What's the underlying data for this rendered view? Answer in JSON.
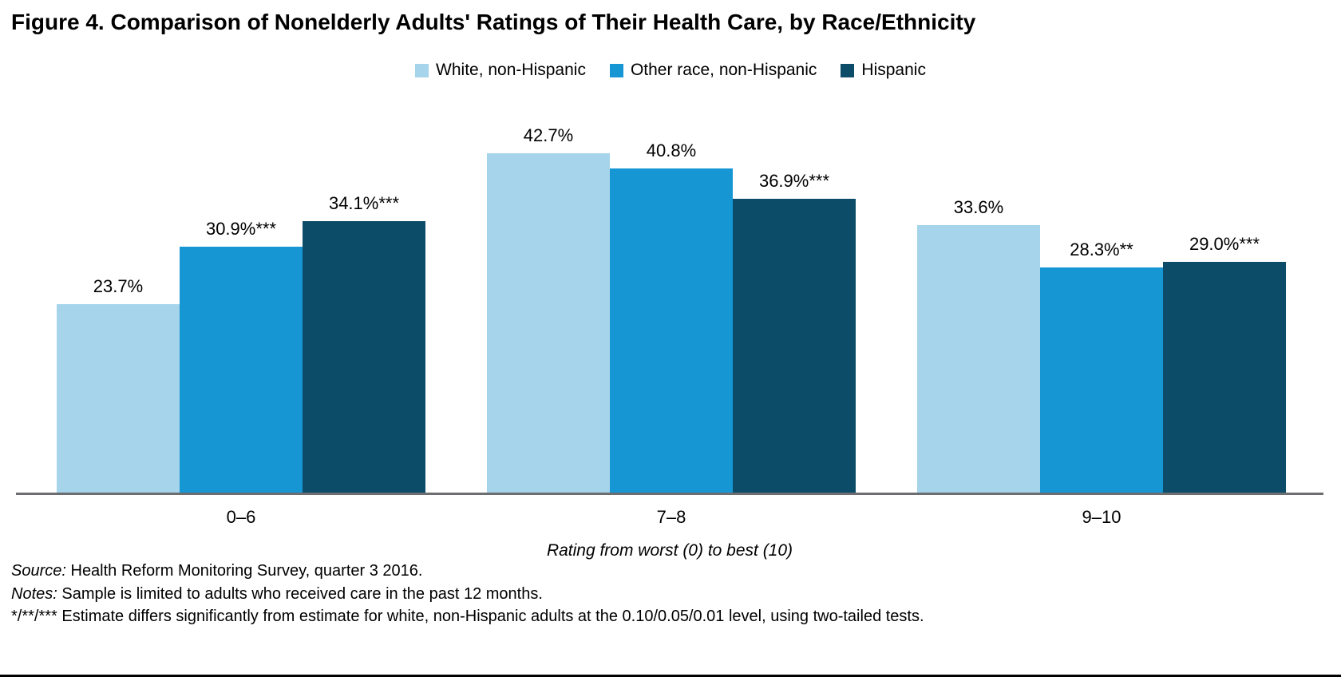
{
  "title": "Figure 4. Comparison of Nonelderly Adults' Ratings of Their Health Care, by Race/Ethnicity",
  "legend": [
    {
      "label": "White, non-Hispanic",
      "color": "#a6d4ea"
    },
    {
      "label": "Other race, non-Hispanic",
      "color": "#1796d4"
    },
    {
      "label": "Hispanic",
      "color": "#0c4c69"
    }
  ],
  "chart_data": {
    "type": "bar",
    "categories": [
      "0–6",
      "7–8",
      "9–10"
    ],
    "series": [
      {
        "name": "White, non-Hispanic",
        "color": "#a6d4ea",
        "values": [
          23.7,
          42.7,
          33.6
        ],
        "labels": [
          "23.7%",
          "42.7%",
          "33.6%"
        ]
      },
      {
        "name": "Other race, non-Hispanic",
        "color": "#1796d4",
        "values": [
          30.9,
          40.8,
          28.3
        ],
        "labels": [
          "30.9%***",
          "40.8%",
          "28.3%**"
        ]
      },
      {
        "name": "Hispanic",
        "color": "#0c4c69",
        "values": [
          34.1,
          36.9,
          29.0
        ],
        "labels": [
          "34.1%***",
          "36.9%***",
          "29.0%***"
        ]
      }
    ],
    "xlabel": "Rating from worst (0) to best (10)",
    "ylabel": "",
    "ylim": [
      0,
      45
    ],
    "grid": false,
    "legend_position": "top",
    "axis_color": "#6d6e71"
  },
  "footer": {
    "source_prefix": "Source:",
    "source_text": " Health Reform Monitoring Survey, quarter 3 2016.",
    "notes_prefix": "Notes:",
    "notes_text": " Sample is limited to adults who received care in the past 12 months.",
    "significance_note": "*/**/*** Estimate differs significantly from estimate for white, non-Hispanic adults at the 0.10/0.05/0.01 level, using two-tailed tests."
  }
}
